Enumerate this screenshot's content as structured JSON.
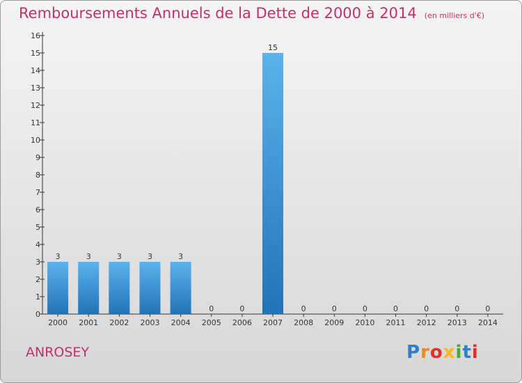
{
  "title": "Remboursements Annuels de la Dette de 2000 à 2014",
  "unit_label": "(en milliers d'€)",
  "commune": "ANROSEY",
  "logo": {
    "text": "Proxiti",
    "colors": [
      "#2d7fc8",
      "#f08a1c",
      "#e0302e",
      "#f6b81a",
      "#47a832",
      "#2d7fc8",
      "#e0302e"
    ]
  },
  "colors": {
    "title": "#c0306a",
    "bar_top": "#5cb2ec",
    "bar_bottom": "#2372b6"
  },
  "chart_data": {
    "type": "bar",
    "categories": [
      "2000",
      "2001",
      "2002",
      "2003",
      "2004",
      "2005",
      "2006",
      "2007",
      "2008",
      "2009",
      "2010",
      "2011",
      "2012",
      "2013",
      "2014"
    ],
    "values": [
      3,
      3,
      3,
      3,
      3,
      0,
      0,
      15,
      0,
      0,
      0,
      0,
      0,
      0,
      0
    ],
    "yticks": [
      0,
      1,
      2,
      3,
      4,
      5,
      6,
      7,
      8,
      9,
      10,
      11,
      12,
      13,
      14,
      15,
      16
    ],
    "ylim": [
      0,
      16
    ],
    "grid": false
  }
}
